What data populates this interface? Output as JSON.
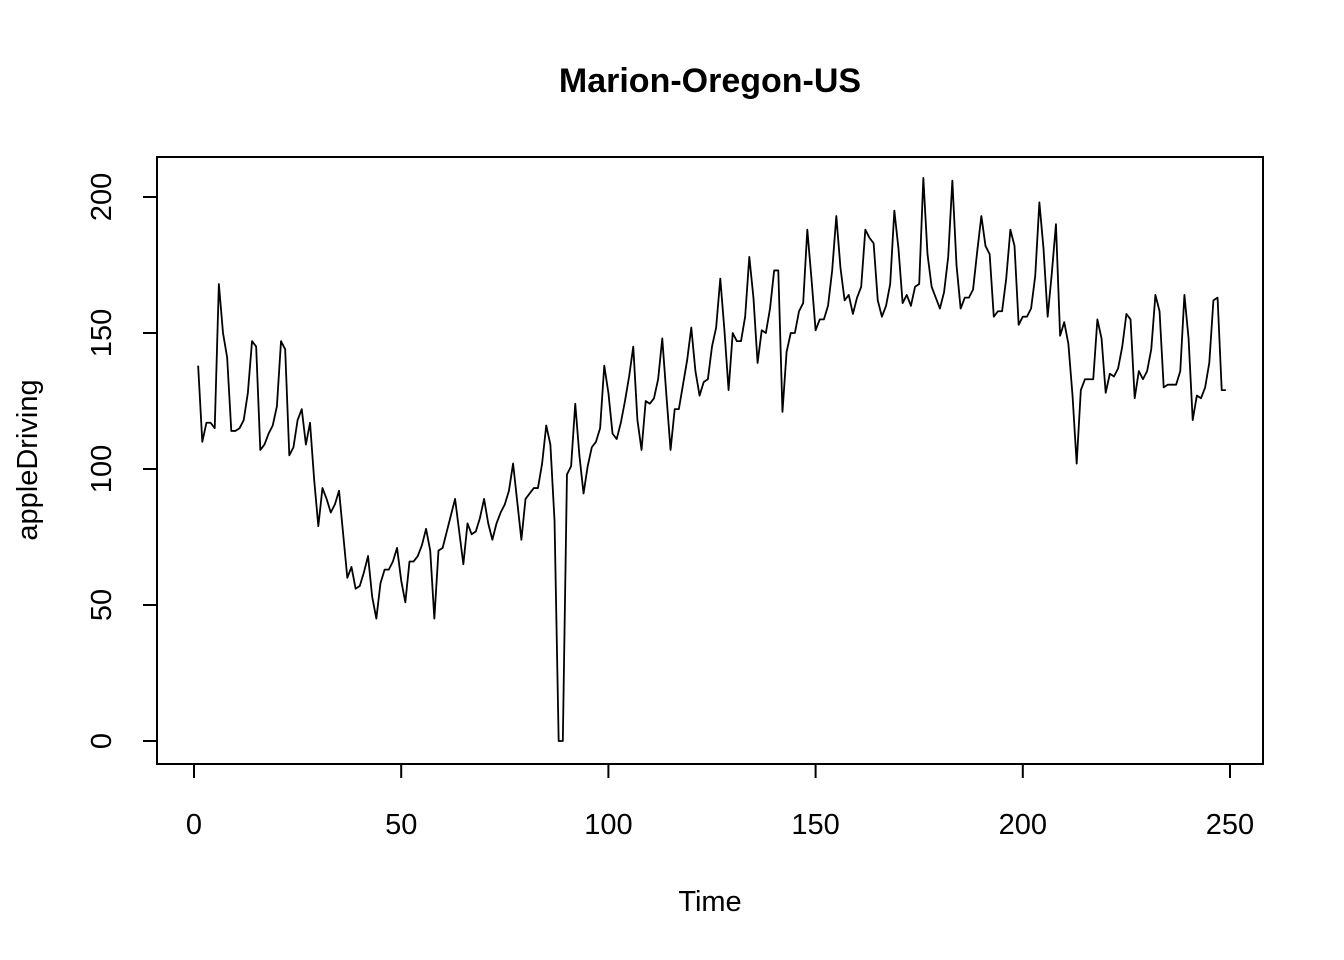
{
  "chart_data": {
    "type": "line",
    "title": "Marion-Oregon-US",
    "xlabel": "Time",
    "ylabel": "appleDriving",
    "xlim": [
      1,
      248
    ],
    "ylim": [
      0,
      207
    ],
    "x_ticks": [
      0,
      50,
      100,
      150,
      200,
      250
    ],
    "x_tick_labels": [
      "0",
      "50",
      "100",
      "150",
      "200",
      "250"
    ],
    "y_ticks": [
      0,
      50,
      100,
      150,
      200
    ],
    "y_tick_labels": [
      "0",
      "50",
      "100",
      "150",
      "200"
    ],
    "grid": false,
    "legend": "none",
    "series": [
      {
        "x_start": 1,
        "values": [
          138,
          110,
          117,
          117,
          115,
          168,
          150,
          141,
          114,
          114,
          115,
          118,
          128,
          147,
          145,
          107,
          109,
          113,
          116,
          123,
          147,
          144,
          105,
          108,
          118,
          122,
          109,
          117,
          96,
          79,
          93,
          89,
          84,
          87,
          92,
          76,
          60,
          64,
          56,
          57,
          62,
          68,
          53,
          45,
          58,
          63,
          63,
          66,
          71,
          59,
          51,
          66,
          66,
          68,
          72,
          78,
          70,
          45,
          70,
          71,
          77,
          83,
          89,
          77,
          65,
          80,
          76,
          77,
          82,
          89,
          80,
          74,
          80,
          84,
          87,
          92,
          102,
          88,
          74,
          89,
          91,
          93,
          93,
          102,
          116,
          109,
          81,
          0,
          0,
          98,
          101,
          124,
          105,
          91,
          101,
          108,
          110,
          115,
          138,
          128,
          113,
          111,
          117,
          125,
          134,
          145,
          118,
          107,
          125,
          124,
          126,
          133,
          148,
          127,
          107,
          122,
          122,
          131,
          140,
          152,
          136,
          127,
          132,
          133,
          145,
          152,
          170,
          151,
          129,
          150,
          147,
          147,
          156,
          178,
          163,
          139,
          151,
          150,
          159,
          173,
          173,
          121,
          143,
          150,
          150,
          158,
          161,
          188,
          170,
          151,
          155,
          155,
          160,
          173,
          193,
          174,
          162,
          164,
          157,
          163,
          167,
          188,
          185,
          183,
          162,
          156,
          160,
          168,
          195,
          181,
          161,
          164,
          160,
          167,
          168,
          207,
          179,
          167,
          163,
          159,
          165,
          178,
          206,
          175,
          159,
          163,
          163,
          166,
          180,
          193,
          182,
          179,
          156,
          158,
          158,
          170,
          188,
          182,
          153,
          156,
          156,
          159,
          171,
          198,
          181,
          156,
          172,
          190,
          149,
          154,
          146,
          127,
          102,
          129,
          133,
          133,
          133,
          155,
          148,
          128,
          135,
          134,
          137,
          145,
          157,
          155,
          126,
          136,
          133,
          136,
          144,
          164,
          158,
          130,
          131,
          131,
          131,
          136,
          164,
          148,
          118,
          127,
          126,
          130,
          139,
          162,
          163,
          129,
          129
        ]
      }
    ]
  }
}
